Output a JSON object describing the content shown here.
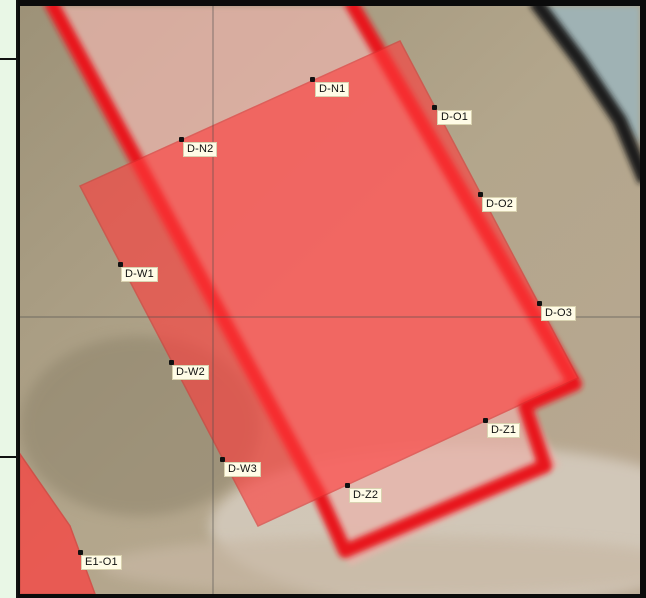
{
  "map": {
    "style": "aerial-imagery",
    "overlay_color": "#ff3b3b",
    "point_labels": [
      {
        "label": "D-N1"
      },
      {
        "label": "D-O1"
      },
      {
        "label": "D-N2"
      },
      {
        "label": "D-O2"
      },
      {
        "label": "D-W1"
      },
      {
        "label": "D-O3"
      },
      {
        "label": "D-W2"
      },
      {
        "label": "D-Z1"
      },
      {
        "label": "D-W3"
      },
      {
        "label": "D-Z2"
      },
      {
        "label": "E1-O1"
      }
    ]
  }
}
